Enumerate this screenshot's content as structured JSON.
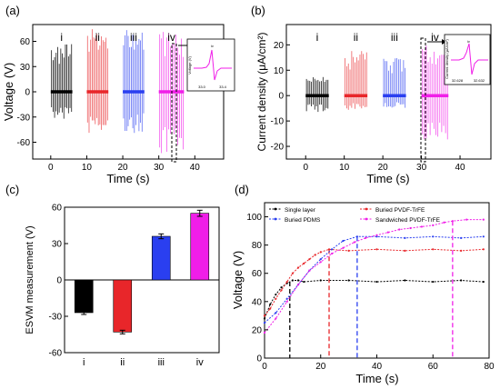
{
  "panels": {
    "a": {
      "tag": "(a)",
      "xlabel": "Time (s)",
      "ylabel": "Voltage (V)",
      "xticks": [
        "0",
        "10",
        "20",
        "30",
        "40"
      ],
      "yticks": [
        "60",
        "30",
        "0",
        "-30",
        "-60"
      ],
      "groups": [
        "i",
        "ii",
        "iii",
        "iv"
      ],
      "inset": {
        "ylabel": "Voltage (V)",
        "xticks": [
          "33.0",
          "33.4"
        ],
        "mark": "iv"
      }
    },
    "b": {
      "tag": "(b)",
      "xlabel": "Time (s)",
      "ylabel": "Current density (μA/cm²)",
      "xticks": [
        "0",
        "10",
        "20",
        "30",
        "40"
      ],
      "yticks": [
        "20",
        "10",
        "0",
        "-10",
        "-20"
      ],
      "groups": [
        "i",
        "ii",
        "iii",
        "iv"
      ],
      "inset": {
        "ylabel": "Current density (μA/cm²)",
        "xticks": [
          "32.628",
          "32.632"
        ],
        "mark": "iv"
      }
    },
    "c": {
      "tag": "(c)",
      "ylabel": "ESVM measurement (V)",
      "yticks": [
        "60",
        "30",
        "0",
        "-30",
        "-60"
      ],
      "groups": [
        "i",
        "ii",
        "iii",
        "iv"
      ]
    },
    "d": {
      "tag": "(d)",
      "xlabel": "Time (s)",
      "ylabel": "Voltage (V)",
      "xticks": [
        "0",
        "20",
        "40",
        "60",
        "80"
      ],
      "yticks": [
        "0",
        "20",
        "40",
        "60",
        "80",
        "100"
      ],
      "legend": [
        "Single layer",
        "Buried PVDF-TrFE",
        "Buried PDMS",
        "Sandwiched PVDF-TrFE"
      ]
    }
  },
  "colors": {
    "i": "#000000",
    "ii": "#e8262a",
    "iii": "#2a3ff0",
    "iv": "#f01ee8"
  },
  "chart_data": [
    {
      "type": "line",
      "title": "",
      "xlabel": "Time (s)",
      "ylabel": "Voltage (V)",
      "xlim": [
        -5,
        48
      ],
      "ylim": [
        -80,
        80
      ],
      "series": [
        {
          "name": "i",
          "time_range": [
            0,
            6
          ],
          "peak_max": 57,
          "peak_min": -33
        },
        {
          "name": "ii",
          "time_range": [
            10,
            16
          ],
          "peak_max": 77,
          "peak_min": -55
        },
        {
          "name": "iii",
          "time_range": [
            20,
            26
          ],
          "peak_max": 75,
          "peak_min": -50
        },
        {
          "name": "iv",
          "time_range": [
            30,
            37
          ],
          "peak_max": 75,
          "peak_min": -78
        }
      ]
    },
    {
      "type": "line",
      "title": "",
      "xlabel": "Time (s)",
      "ylabel": "Current density (μA/cm²)",
      "xlim": [
        -5,
        48
      ],
      "ylim": [
        -25,
        28
      ],
      "series": [
        {
          "name": "i",
          "time_range": [
            0,
            6
          ],
          "peak_max": 7.5,
          "peak_min": -6.5
        },
        {
          "name": "ii",
          "time_range": [
            10,
            16
          ],
          "peak_max": 18,
          "peak_min": -6
        },
        {
          "name": "iii",
          "time_range": [
            20,
            26
          ],
          "peak_max": 16,
          "peak_min": -5
        },
        {
          "name": "iv",
          "time_range": [
            30,
            37
          ],
          "peak_max": 20,
          "peak_min": -20
        }
      ]
    },
    {
      "type": "bar",
      "title": "",
      "xlabel": "",
      "ylabel": "ESVM measurement (V)",
      "categories": [
        "i",
        "ii",
        "iii",
        "iv"
      ],
      "values": [
        -27,
        -43,
        36,
        55
      ],
      "errors": [
        1.5,
        1.5,
        2,
        2.5
      ],
      "ylim": [
        -60,
        60
      ]
    },
    {
      "type": "line",
      "title": "",
      "xlabel": "Time (s)",
      "ylabel": "Voltage (V)",
      "xlim": [
        0,
        80
      ],
      "ylim": [
        0,
        110
      ],
      "legend_position": "top-left",
      "series": [
        {
          "name": "Single layer",
          "x": [
            0,
            2,
            4,
            6,
            8,
            10,
            12,
            14,
            20,
            30,
            40,
            50,
            60,
            70,
            78
          ],
          "y": [
            28,
            38,
            45,
            50,
            53,
            55,
            55,
            54,
            55,
            55,
            54,
            55,
            54,
            55,
            54
          ],
          "saturation_time": 9
        },
        {
          "name": "Buried PVDF-TrFE",
          "x": [
            0,
            2,
            4,
            6,
            8,
            10,
            12,
            14,
            16,
            18,
            20,
            23,
            30,
            40,
            50,
            60,
            70,
            78
          ],
          "y": [
            30,
            35,
            42,
            48,
            54,
            60,
            64,
            67,
            70,
            73,
            75,
            77,
            76,
            77,
            76,
            77,
            76,
            77
          ],
          "saturation_time": 23
        },
        {
          "name": "Buried PDMS",
          "x": [
            0,
            4,
            8,
            12,
            16,
            20,
            24,
            28,
            33,
            40,
            50,
            60,
            70,
            78
          ],
          "y": [
            25,
            32,
            42,
            52,
            62,
            70,
            77,
            83,
            86,
            86,
            85,
            86,
            85,
            86
          ],
          "saturation_time": 33
        },
        {
          "name": "Sandwiched PVDF-TrFE",
          "x": [
            0,
            4,
            8,
            12,
            16,
            20,
            24,
            28,
            32,
            36,
            40,
            44,
            48,
            52,
            56,
            60,
            64,
            67,
            72,
            78
          ],
          "y": [
            18,
            28,
            40,
            52,
            62,
            68,
            74,
            78,
            82,
            85,
            87,
            89,
            91,
            92,
            93,
            94,
            96,
            97,
            98,
            98
          ],
          "saturation_time": 67
        }
      ]
    }
  ]
}
